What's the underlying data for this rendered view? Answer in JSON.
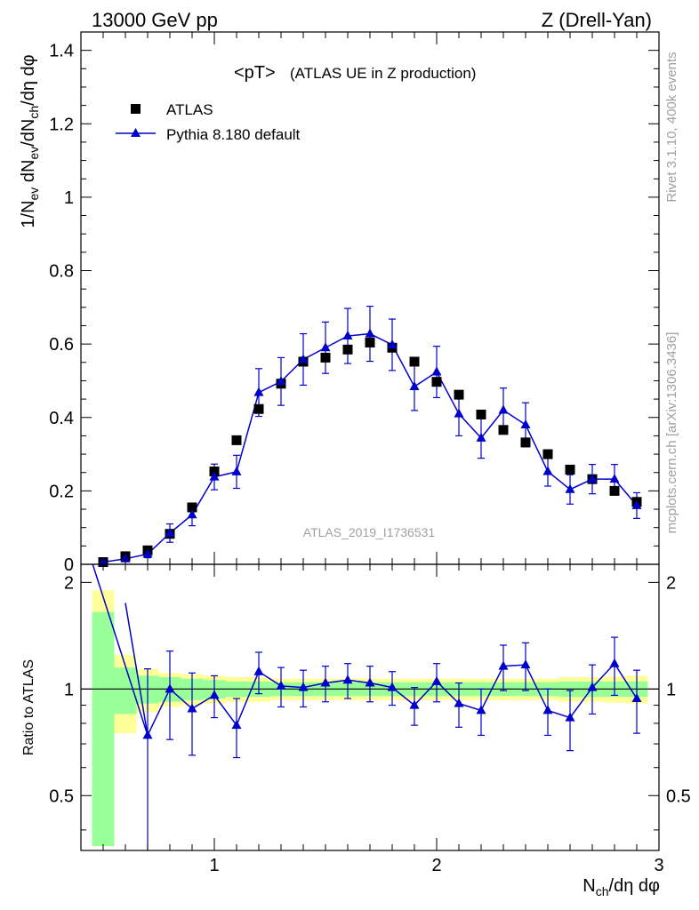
{
  "header": {
    "left": "13000 GeV pp",
    "right": "Z (Drell-Yan)"
  },
  "side_labels": {
    "rivet": "Rivet 3.1.10,  400k events",
    "mcplots": "mcplots.cern.ch [arXiv:1306.3436]"
  },
  "colors": {
    "data_marker": "#000000",
    "mc_line": "#0000cc",
    "band_inner": "#99ff99",
    "band_outer": "#ffff99"
  },
  "chart_data": {
    "type": "scatter",
    "title_main": "<pT>",
    "title_sub": "(ATLAS UE in Z production)",
    "watermark": "ATLAS_2019_I1736531",
    "xlabel": "N_ch/dη dφ",
    "ylabel": "1/N_ev dN_ev/dN_ch/dη dφ",
    "ratio_ylabel": "Ratio to ATLAS",
    "xlim": [
      0.4,
      3.0
    ],
    "ylim": [
      0,
      1.45
    ],
    "ratio_ylim": [
      0.35,
      2.25
    ],
    "x_ticks": [
      1,
      2,
      3
    ],
    "y_ticks": [
      0,
      0.2,
      0.4,
      0.6,
      0.8,
      1,
      1.2,
      1.4
    ],
    "ratio_ticks": [
      0.5,
      1,
      2
    ],
    "legend": {
      "position": "top-left",
      "entries": [
        "ATLAS",
        "Pythia 8.180 default"
      ]
    },
    "x": [
      0.5,
      0.6,
      0.7,
      0.8,
      0.9,
      1.0,
      1.1,
      1.2,
      1.3,
      1.4,
      1.5,
      1.6,
      1.7,
      1.8,
      1.9,
      2.0,
      2.1,
      2.2,
      2.3,
      2.4,
      2.5,
      2.6,
      2.7,
      2.8,
      2.9
    ],
    "series": [
      {
        "name": "ATLAS",
        "values": [
          0.006,
          0.022,
          0.038,
          0.083,
          0.155,
          0.253,
          0.338,
          0.423,
          0.492,
          0.552,
          0.563,
          0.585,
          0.604,
          0.59,
          0.552,
          0.497,
          0.462,
          0.408,
          0.366,
          0.332,
          0.3,
          0.258,
          0.232,
          0.2,
          0.17
        ]
      },
      {
        "name": "Pythia 8.180 default",
        "values": [
          0.006,
          0.015,
          0.028,
          0.085,
          0.135,
          0.238,
          0.252,
          0.468,
          0.498,
          0.558,
          0.59,
          0.622,
          0.628,
          0.598,
          0.484,
          0.524,
          0.41,
          0.344,
          0.42,
          0.38,
          0.253,
          0.204,
          0.232,
          0.232,
          0.16
        ],
        "errors": [
          0,
          0.005,
          0.01,
          0.025,
          0.03,
          0.035,
          0.045,
          0.065,
          0.065,
          0.07,
          0.07,
          0.075,
          0.075,
          0.07,
          0.065,
          0.07,
          0.06,
          0.055,
          0.06,
          0.06,
          0.04,
          0.04,
          0.04,
          0.04,
          0.035
        ]
      }
    ],
    "ratio": {
      "values": [
        2.6,
        0.0,
        0.74,
        1.0,
        0.88,
        0.96,
        0.79,
        1.12,
        1.02,
        1.01,
        1.04,
        1.06,
        1.04,
        1.01,
        0.9,
        1.05,
        0.91,
        0.87,
        1.16,
        1.17,
        0.87,
        0.83,
        1.01,
        1.18,
        0.94
      ],
      "errors": [
        0,
        0,
        0.4,
        0.28,
        0.23,
        0.13,
        0.15,
        0.15,
        0.13,
        0.12,
        0.12,
        0.12,
        0.12,
        0.11,
        0.11,
        0.13,
        0.13,
        0.13,
        0.17,
        0.18,
        0.13,
        0.16,
        0.16,
        0.22,
        0.19
      ],
      "band_inner": [
        0.65,
        0.15,
        0.09,
        0.08,
        0.07,
        0.06,
        0.05,
        0.05,
        0.045,
        0.045,
        0.045,
        0.045,
        0.045,
        0.045,
        0.045,
        0.045,
        0.045,
        0.045,
        0.045,
        0.045,
        0.045,
        0.05,
        0.05,
        0.05,
        0.05
      ],
      "band_outer": [
        0.9,
        0.25,
        0.14,
        0.11,
        0.1,
        0.09,
        0.08,
        0.08,
        0.07,
        0.07,
        0.07,
        0.07,
        0.07,
        0.07,
        0.07,
        0.07,
        0.07,
        0.07,
        0.07,
        0.07,
        0.07,
        0.08,
        0.08,
        0.085,
        0.09
      ]
    }
  }
}
